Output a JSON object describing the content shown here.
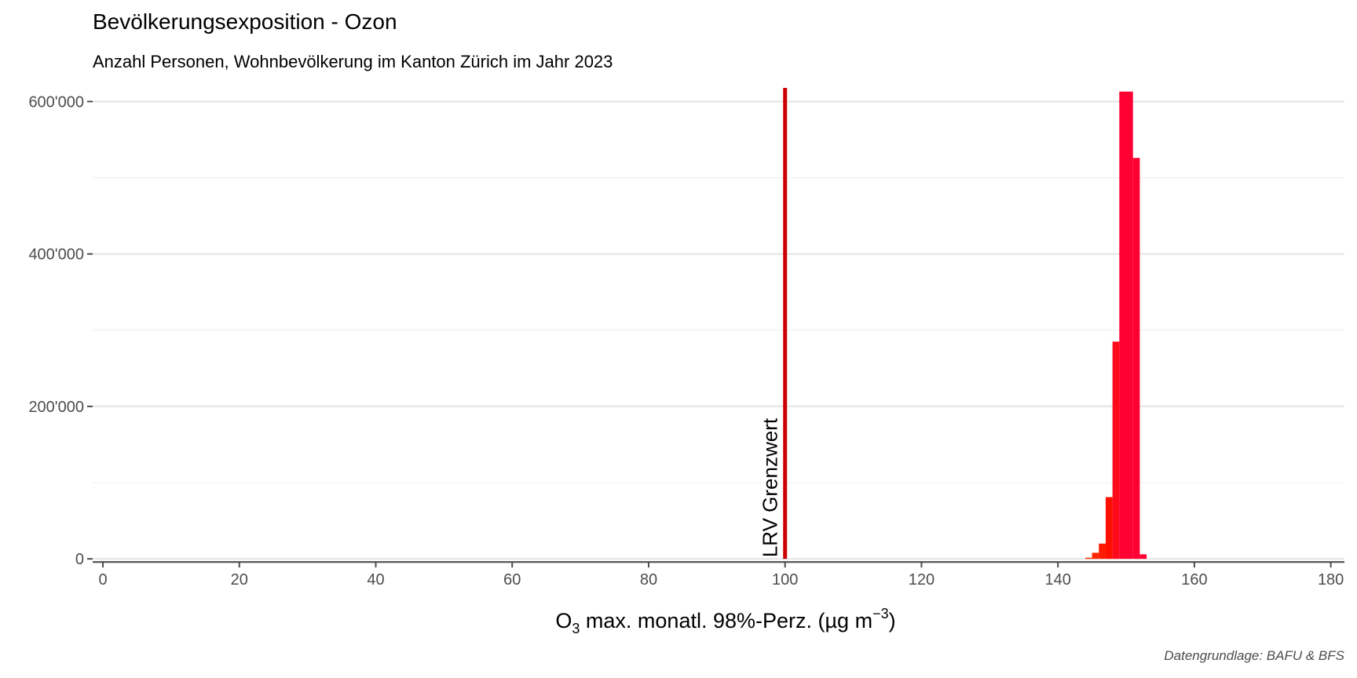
{
  "chart_data": {
    "type": "bar",
    "title": "Bevölkerungsexposition - Ozon",
    "subtitle": "Anzahl Personen, Wohnbevölkerung im Kanton Zürich im Jahr 2023",
    "xlabel_parts": {
      "base": "O",
      "sub": "3",
      "mid": " max. monatl. 98%-Perz. (µg m",
      "sup": "−3",
      "end": ")"
    },
    "caption": "Datengrundlage: BAFU & BFS",
    "xlim": [
      -1.5,
      182
    ],
    "ylim": [
      -6000,
      622000
    ],
    "x_ticks": [
      0,
      20,
      40,
      60,
      80,
      100,
      120,
      140,
      160,
      180
    ],
    "y_ticks": [
      0,
      200000,
      400000,
      600000
    ],
    "y_tick_labels": [
      "0",
      "200'000",
      "400'000",
      "600'000"
    ],
    "grid": true,
    "bin_width": 1,
    "bins": [
      {
        "x": 144.5,
        "value": 1500,
        "color": "#ff3300"
      },
      {
        "x": 145.5,
        "value": 8000,
        "color": "#ff2600"
      },
      {
        "x": 146.5,
        "value": 20000,
        "color": "#ff1a00"
      },
      {
        "x": 147.5,
        "value": 81000,
        "color": "#ff1000"
      },
      {
        "x": 148.5,
        "value": 285000,
        "color": "#ff0a1a"
      },
      {
        "x": 149.5,
        "value": 613000,
        "color": "#ff0030"
      },
      {
        "x": 150.5,
        "value": 613000,
        "color": "#ff0033"
      },
      {
        "x": 151.5,
        "value": 526000,
        "color": "#ff0033"
      },
      {
        "x": 152.5,
        "value": 6000,
        "color": "#ff0033"
      }
    ],
    "reference_line": {
      "x": 100,
      "label": "LRV Grenzwert",
      "color": "#cc0000"
    }
  }
}
